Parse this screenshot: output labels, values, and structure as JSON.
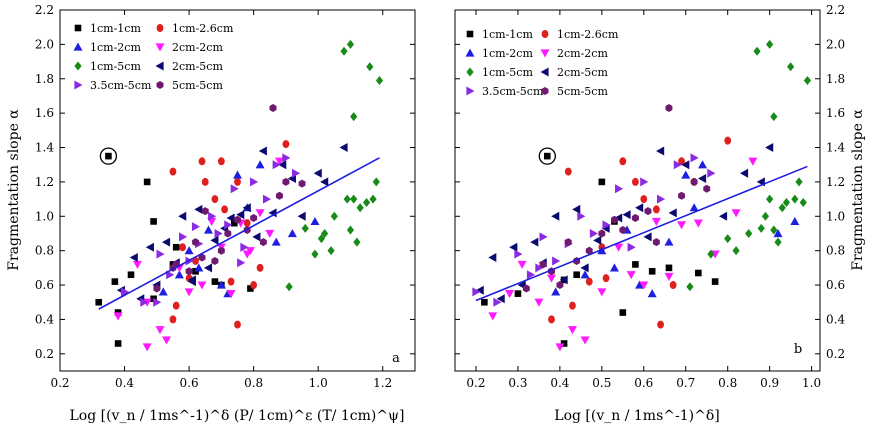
{
  "figure": {
    "left": {
      "xlabel": "Log [(v_n / 1ms^-1)^δ (P/ 1cm)^ε (T/ 1cm)^ψ]",
      "ylabel": "Fragmentation slope α",
      "panel_letter": "a"
    },
    "right": {
      "xlabel": "Log [(v_n / 1ms^-1)^δ]",
      "ylabel": "Fragmentation slope α",
      "panel_letter": "b"
    }
  },
  "colors": {
    "black": "#000000",
    "blue": "#1f1fe0",
    "green": "#178a17",
    "red": "#e01f1f",
    "magenta": "#ff19ff",
    "navy": "#0a0a70",
    "violet": "#8a2be2",
    "purple": "#6f1a6f",
    "fit": "#1d1de0"
  },
  "chart_data": [
    {
      "type": "scatter",
      "panel": "a",
      "xlabel": "Log [(v_n / 1ms^-1)^δ (P/ 1cm)^ε (T/ 1cm)^ψ]",
      "ylabel": "Fragmentation slope α",
      "xlim": [
        0.2,
        1.3
      ],
      "ylim": [
        0.1,
        2.2
      ],
      "xticks": [
        "0.2",
        "0.4",
        "0.6",
        "0.8",
        "1.0",
        "1.2"
      ],
      "yticks": [
        "0.2",
        "0.4",
        "0.6",
        "0.8",
        "1.0",
        "1.2",
        "1.4",
        "1.6",
        "1.8",
        "2.0",
        "2.2"
      ],
      "legend_position": "top-left",
      "fit_line": {
        "x": [
          0.32,
          1.19
        ],
        "y": [
          0.46,
          1.34
        ]
      },
      "circled_point": {
        "x": 0.35,
        "y": 1.35
      },
      "series": [
        {
          "name": "1cm-1cm",
          "marker": "square",
          "color": "#000000",
          "x": [
            0.32,
            0.35,
            0.37,
            0.38,
            0.42,
            0.47,
            0.49,
            0.38,
            0.55,
            0.62,
            0.7,
            0.68,
            0.74,
            0.79,
            0.49,
            0.56
          ],
          "y": [
            0.5,
            1.35,
            0.62,
            0.26,
            0.66,
            1.2,
            0.97,
            0.44,
            0.72,
            0.68,
            0.6,
            0.62,
            0.96,
            0.58,
            0.52,
            0.82
          ]
        },
        {
          "name": "1cm-2.6cm",
          "marker": "circle",
          "color": "#e01f1f",
          "x": [
            0.55,
            0.55,
            0.58,
            0.6,
            0.64,
            0.65,
            0.68,
            0.7,
            0.71,
            0.73,
            0.75,
            0.75,
            0.78,
            0.8,
            0.82,
            0.9,
            0.56,
            0.62
          ],
          "y": [
            0.4,
            1.26,
            0.82,
            0.64,
            1.32,
            1.2,
            1.1,
            1.32,
            1.04,
            0.62,
            0.37,
            1.2,
            0.96,
            0.6,
            0.7,
            1.42,
            0.48,
            0.74
          ]
        },
        {
          "name": "1cm-2cm",
          "marker": "triangle-up",
          "color": "#1f1fe0",
          "x": [
            0.52,
            0.57,
            0.6,
            0.63,
            0.66,
            0.7,
            0.72,
            0.75,
            0.78,
            0.82,
            0.87,
            0.92,
            0.99
          ],
          "y": [
            0.56,
            0.66,
            0.8,
            0.7,
            0.92,
            0.6,
            0.55,
            1.24,
            1.05,
            1.3,
            0.85,
            0.9,
            0.97
          ]
        },
        {
          "name": "2cm-2cm",
          "marker": "triangle-down",
          "color": "#ff19ff",
          "x": [
            0.38,
            0.44,
            0.47,
            0.51,
            0.53,
            0.57,
            0.6,
            0.64,
            0.67,
            0.7,
            0.73,
            0.76,
            0.79,
            0.82,
            0.85,
            0.88,
            0.47,
            0.78
          ],
          "y": [
            0.42,
            0.72,
            0.24,
            0.34,
            0.28,
            0.7,
            0.56,
            0.6,
            0.97,
            0.82,
            0.55,
            0.96,
            0.8,
            1.02,
            0.9,
            1.32,
            0.5,
            0.78
          ]
        },
        {
          "name": "1cm-5cm",
          "marker": "diamond",
          "color": "#178a17",
          "x": [
            0.91,
            0.96,
            0.99,
            1.01,
            1.02,
            1.04,
            1.05,
            1.08,
            1.09,
            1.1,
            1.1,
            1.11,
            1.11,
            1.12,
            1.13,
            1.15,
            1.16,
            1.17,
            1.18,
            1.19
          ],
          "y": [
            0.59,
            0.93,
            0.78,
            0.87,
            0.9,
            0.8,
            1.0,
            1.96,
            1.1,
            2.0,
            0.92,
            1.1,
            1.58,
            0.85,
            1.05,
            1.08,
            1.87,
            1.1,
            1.2,
            1.79
          ]
        },
        {
          "name": "2cm-5cm",
          "marker": "triangle-left",
          "color": "#0a0a70",
          "x": [
            0.39,
            0.43,
            0.45,
            0.48,
            0.5,
            0.53,
            0.56,
            0.58,
            0.61,
            0.63,
            0.66,
            0.68,
            0.71,
            0.73,
            0.76,
            0.78,
            0.81,
            0.83,
            0.86,
            0.89,
            0.92,
            0.95,
            1.0,
            1.02,
            1.08,
            0.61
          ],
          "y": [
            0.57,
            0.76,
            0.52,
            0.82,
            0.6,
            0.85,
            0.73,
            1.0,
            0.63,
            1.04,
            0.7,
            0.86,
            0.93,
            0.99,
            1.01,
            1.05,
            0.88,
            1.38,
            1.02,
            1.3,
            1.22,
            1.0,
            1.25,
            1.2,
            1.4,
            0.62
          ]
        },
        {
          "name": "3.5cm-5cm",
          "marker": "triangle-right",
          "color": "#8a2be2",
          "x": [
            0.4,
            0.46,
            0.51,
            0.54,
            0.58,
            0.6,
            0.63,
            0.67,
            0.69,
            0.72,
            0.74,
            0.77,
            0.8,
            0.84,
            0.87,
            0.9,
            0.93,
            0.5,
            0.62,
            0.76
          ],
          "y": [
            0.56,
            0.5,
            0.78,
            0.66,
            0.88,
            0.74,
            0.84,
            1.0,
            0.9,
            0.95,
            1.16,
            0.82,
            1.2,
            1.1,
            1.3,
            1.34,
            1.25,
            0.5,
            0.94,
            0.73
          ]
        },
        {
          "name": "5cm-5cm",
          "marker": "hexagon",
          "color": "#6f1a6f",
          "x": [
            0.5,
            0.56,
            0.6,
            0.62,
            0.65,
            0.68,
            0.7,
            0.72,
            0.75,
            0.78,
            0.8,
            0.83,
            0.86,
            0.88,
            0.9,
            0.95,
            0.55,
            0.64
          ],
          "y": [
            0.58,
            0.72,
            0.68,
            0.85,
            1.03,
            0.74,
            0.8,
            0.9,
            0.98,
            0.92,
            0.99,
            0.85,
            1.63,
            1.12,
            1.2,
            1.19,
            0.7,
            0.76
          ]
        }
      ]
    },
    {
      "type": "scatter",
      "panel": "b",
      "xlabel": "Log [(v_n / 1ms^-1)^δ]",
      "ylabel": "Fragmentation slope α",
      "xlim": [
        0.15,
        1.02
      ],
      "ylim": [
        0.1,
        2.2
      ],
      "xticks": [
        "0.2",
        "0.3",
        "0.4",
        "0.5",
        "0.6",
        "0.7",
        "0.8",
        "0.9",
        "1.0"
      ],
      "yticks": [
        "0.2",
        "0.4",
        "0.6",
        "0.8",
        "1.0",
        "1.2",
        "1.4",
        "1.6",
        "1.8",
        "2.0",
        "2.2"
      ],
      "legend_position": "top-left",
      "fit_line": {
        "x": [
          0.2,
          0.99
        ],
        "y": [
          0.51,
          1.29
        ]
      },
      "circled_point": {
        "x": 0.37,
        "y": 1.35
      },
      "series": [
        {
          "name": "1cm-1cm",
          "marker": "square",
          "color": "#000000",
          "x": [
            0.22,
            0.37,
            0.41,
            0.41,
            0.44,
            0.5,
            0.53,
            0.55,
            0.58,
            0.62,
            0.66,
            0.73,
            0.77,
            0.3
          ],
          "y": [
            0.5,
            1.35,
            0.63,
            0.26,
            0.66,
            1.2,
            0.97,
            0.44,
            0.72,
            0.68,
            0.7,
            0.67,
            0.62,
            0.55
          ]
        },
        {
          "name": "1cm-2.6cm",
          "marker": "circle",
          "color": "#e01f1f",
          "x": [
            0.38,
            0.42,
            0.43,
            0.47,
            0.5,
            0.55,
            0.58,
            0.6,
            0.63,
            0.64,
            0.67,
            0.69,
            0.72,
            0.8,
            0.51
          ],
          "y": [
            0.4,
            1.26,
            0.48,
            0.62,
            0.82,
            1.32,
            1.2,
            1.1,
            1.04,
            0.37,
            0.6,
            1.32,
            1.2,
            1.44,
            0.64
          ]
        },
        {
          "name": "1cm-2cm",
          "marker": "triangle-up",
          "color": "#1f1fe0",
          "x": [
            0.39,
            0.46,
            0.5,
            0.53,
            0.56,
            0.59,
            0.62,
            0.66,
            0.7,
            0.72,
            0.74,
            0.92,
            0.96
          ],
          "y": [
            0.56,
            0.66,
            0.8,
            0.7,
            0.92,
            0.6,
            0.55,
            0.85,
            1.24,
            1.05,
            1.3,
            0.9,
            0.97
          ]
        },
        {
          "name": "2cm-2cm",
          "marker": "triangle-down",
          "color": "#ff19ff",
          "x": [
            0.24,
            0.28,
            0.31,
            0.35,
            0.4,
            0.43,
            0.46,
            0.5,
            0.54,
            0.57,
            0.6,
            0.63,
            0.66,
            0.69,
            0.73,
            0.77,
            0.82,
            0.86,
            0.38
          ],
          "y": [
            0.42,
            0.55,
            0.72,
            0.5,
            0.24,
            0.34,
            0.28,
            0.56,
            0.82,
            0.66,
            0.6,
            0.97,
            0.65,
            0.95,
            0.96,
            0.78,
            1.02,
            1.32,
            0.64
          ]
        },
        {
          "name": "1cm-5cm",
          "marker": "diamond",
          "color": "#178a17",
          "x": [
            0.71,
            0.76,
            0.8,
            0.82,
            0.85,
            0.87,
            0.88,
            0.89,
            0.9,
            0.9,
            0.91,
            0.91,
            0.92,
            0.93,
            0.94,
            0.95,
            0.96,
            0.97,
            0.98,
            0.99
          ],
          "y": [
            0.59,
            0.78,
            0.87,
            0.8,
            0.9,
            1.96,
            0.93,
            1.0,
            2.0,
            1.1,
            0.92,
            1.58,
            0.85,
            1.05,
            1.08,
            1.87,
            1.1,
            1.2,
            1.08,
            1.79
          ]
        },
        {
          "name": "2cm-5cm",
          "marker": "triangle-left",
          "color": "#0a0a70",
          "x": [
            0.21,
            0.24,
            0.26,
            0.29,
            0.31,
            0.34,
            0.36,
            0.39,
            0.41,
            0.44,
            0.46,
            0.49,
            0.51,
            0.54,
            0.56,
            0.59,
            0.61,
            0.64,
            0.67,
            0.7,
            0.74,
            0.79,
            0.84,
            0.88,
            0.9
          ],
          "y": [
            0.57,
            0.76,
            0.52,
            0.82,
            0.6,
            0.85,
            0.73,
            1.0,
            0.63,
            1.04,
            0.7,
            0.86,
            0.93,
            0.99,
            1.01,
            1.05,
            0.88,
            1.38,
            1.02,
            1.3,
            1.22,
            1.0,
            1.25,
            1.2,
            1.4
          ]
        },
        {
          "name": "3.5cm-5cm",
          "marker": "triangle-right",
          "color": "#8a2be2",
          "x": [
            0.2,
            0.25,
            0.3,
            0.33,
            0.36,
            0.39,
            0.42,
            0.45,
            0.48,
            0.51,
            0.54,
            0.57,
            0.6,
            0.64,
            0.68,
            0.72,
            0.76,
            0.35
          ],
          "y": [
            0.56,
            0.5,
            0.78,
            0.66,
            0.88,
            0.74,
            0.84,
            1.0,
            0.9,
            0.95,
            1.16,
            0.82,
            1.2,
            1.1,
            1.3,
            1.34,
            1.25,
            0.7
          ]
        },
        {
          "name": "5cm-5cm",
          "marker": "hexagon",
          "color": "#6f1a6f",
          "x": [
            0.32,
            0.36,
            0.38,
            0.42,
            0.44,
            0.47,
            0.5,
            0.53,
            0.55,
            0.58,
            0.61,
            0.63,
            0.66,
            0.69,
            0.72,
            0.75,
            0.4
          ],
          "y": [
            0.58,
            0.72,
            0.68,
            0.85,
            0.74,
            0.8,
            0.9,
            0.98,
            0.92,
            0.99,
            1.03,
            0.85,
            1.63,
            1.12,
            1.2,
            1.16,
            0.6
          ]
        }
      ]
    }
  ]
}
